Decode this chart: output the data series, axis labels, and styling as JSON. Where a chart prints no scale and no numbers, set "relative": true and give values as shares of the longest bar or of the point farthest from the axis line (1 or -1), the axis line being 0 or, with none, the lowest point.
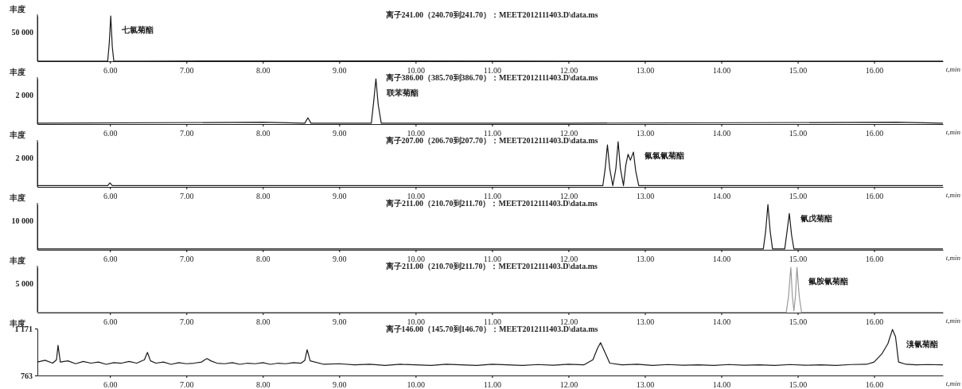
{
  "chart_data": [
    {
      "type": "line",
      "title": "离子241.00（240.70到241.70）：MEET2012111403.D\\data.ms",
      "xlabel": "t,min",
      "ylabel": "丰度",
      "color": "#1a1a1a",
      "relative": true,
      "xlim": [
        5.05,
        16.9
      ],
      "xticks": [
        {
          "value": 6,
          "label": "6.00"
        },
        {
          "value": 7,
          "label": "7.00"
        },
        {
          "value": 8,
          "label": "8.00"
        },
        {
          "value": 9,
          "label": "9.00"
        },
        {
          "value": 10,
          "label": "10.00"
        },
        {
          "value": 11,
          "label": "11.00"
        },
        {
          "value": 12,
          "label": "12.00"
        },
        {
          "value": 13,
          "label": "13.00"
        },
        {
          "value": 14,
          "label": "14.00"
        },
        {
          "value": 15,
          "label": "15.00"
        },
        {
          "value": 16,
          "label": "16.00"
        }
      ],
      "x": [
        5.05,
        5.5,
        5.97,
        5.99,
        6.01,
        6.03,
        6.05,
        6.5,
        9.48,
        12,
        16.9
      ],
      "values": [
        0.004,
        0.004,
        0.004,
        0.39,
        1,
        0.32,
        0.004,
        0.004,
        0.008,
        0.004,
        0.004
      ],
      "annotations": [
        "50 000",
        "七氯菊酯"
      ]
    },
    {
      "type": "line",
      "title": "离子386.00（385.70到386.70）：MEET2012111403.D\\data.ms",
      "xlabel": "t,min",
      "ylabel": "丰度",
      "color": "#1a1a1a",
      "relative": true,
      "xlim": [
        5.05,
        16.9
      ],
      "xticks": [
        {
          "value": 6,
          "label": "6.00"
        },
        {
          "value": 7,
          "label": "7.00"
        },
        {
          "value": 8,
          "label": "8.00"
        },
        {
          "value": 9,
          "label": "9.00"
        },
        {
          "value": 10,
          "label": "10.00"
        },
        {
          "value": 11,
          "label": "11.00"
        },
        {
          "value": 12,
          "label": "12.00"
        },
        {
          "value": 13,
          "label": "13.00"
        },
        {
          "value": 14,
          "label": "14.00"
        },
        {
          "value": 15,
          "label": "15.00"
        },
        {
          "value": 16,
          "label": "16.00"
        }
      ],
      "x": [
        5.05,
        8.0,
        8.55,
        8.59,
        8.63,
        9.42,
        9.45,
        9.48,
        9.51,
        9.55,
        12,
        16.3,
        16.9
      ],
      "values": [
        0.02,
        0.04,
        0.02,
        0.14,
        0.02,
        0.02,
        0.48,
        1,
        0.43,
        0.02,
        0.02,
        0.04,
        0.02
      ],
      "annotations": [
        "2 000",
        "联苯菊酯"
      ]
    },
    {
      "type": "line",
      "title": "离子207.00（206.70到207.70）：MEET2012111403.D\\data.ms",
      "xlabel": "t,min",
      "ylabel": "丰度",
      "color": "#1a1a1a",
      "relative": true,
      "xlim": [
        5.05,
        16.9
      ],
      "xticks": [
        {
          "value": 6,
          "label": "6.00"
        },
        {
          "value": 7,
          "label": "7.00"
        },
        {
          "value": 8,
          "label": "8.00"
        },
        {
          "value": 9,
          "label": "9.00"
        },
        {
          "value": 10,
          "label": "10.00"
        },
        {
          "value": 11,
          "label": "11.00"
        },
        {
          "value": 12,
          "label": "12.00"
        },
        {
          "value": 13,
          "label": "13.00"
        },
        {
          "value": 14,
          "label": "14.00"
        },
        {
          "value": 15,
          "label": "15.00"
        },
        {
          "value": 16,
          "label": "16.00"
        }
      ],
      "x": [
        5.05,
        5.97,
        6.0,
        6.03,
        12.45,
        12.48,
        12.51,
        12.54,
        12.58,
        12.62,
        12.65,
        12.68,
        12.72,
        12.75,
        12.78,
        12.81,
        12.85,
        12.88,
        12.92,
        16.9
      ],
      "values": [
        0.03,
        0.03,
        0.09,
        0.03,
        0.03,
        0.4,
        0.93,
        0.4,
        0.03,
        0.4,
        1,
        0.4,
        0.03,
        0.48,
        0.72,
        0.59,
        0.77,
        0.35,
        0.03,
        0.03
      ],
      "annotations": [
        "2 000",
        "氟氯氰菊酯"
      ]
    },
    {
      "type": "line",
      "title": "离子211.00（210.70到211.70）：MEET2012111403.D\\data.ms",
      "xlabel": "t,min",
      "ylabel": "丰度",
      "color": "#1a1a1a",
      "relative": true,
      "xlim": [
        5.05,
        16.9
      ],
      "xticks": [
        {
          "value": 6,
          "label": "6.00"
        },
        {
          "value": 7,
          "label": "7.00"
        },
        {
          "value": 8,
          "label": "8.00"
        },
        {
          "value": 9,
          "label": "9.00"
        },
        {
          "value": 10,
          "label": "10.00"
        },
        {
          "value": 11,
          "label": "11.00"
        },
        {
          "value": 12,
          "label": "12.00"
        },
        {
          "value": 13,
          "label": "13.00"
        },
        {
          "value": 14,
          "label": "14.00"
        },
        {
          "value": 15,
          "label": "15.00"
        },
        {
          "value": 16,
          "label": "16.00"
        }
      ],
      "x": [
        5.05,
        14.55,
        14.58,
        14.61,
        14.64,
        14.67,
        14.83,
        14.86,
        14.89,
        14.92,
        14.95,
        16.9
      ],
      "values": [
        0.02,
        0.02,
        0.4,
        1,
        0.4,
        0.02,
        0.02,
        0.4,
        0.8,
        0.32,
        0.02,
        0.02
      ],
      "annotations": [
        "10 000",
        "氰戊菊酯"
      ]
    },
    {
      "type": "line",
      "title": "离子211.00（210.70到211.70）：MEET2012111403.D\\data.ms",
      "xlabel": "t,min",
      "ylabel": "丰度",
      "color": "#9a9a9a",
      "relative": true,
      "xlim": [
        5.05,
        16.9
      ],
      "xticks": [
        {
          "value": 6,
          "label": "6.00"
        },
        {
          "value": 7,
          "label": "7.00"
        },
        {
          "value": 8,
          "label": "8.00"
        },
        {
          "value": 9,
          "label": "9.00"
        },
        {
          "value": 10,
          "label": "10.00"
        },
        {
          "value": 11,
          "label": "11.00"
        },
        {
          "value": 12,
          "label": "12.00"
        },
        {
          "value": 13,
          "label": "13.00"
        },
        {
          "value": 14,
          "label": "14.00"
        },
        {
          "value": 15,
          "label": "15.00"
        },
        {
          "value": 16,
          "label": "16.00"
        }
      ],
      "x": [
        5.05,
        14.85,
        14.88,
        14.91,
        14.93,
        14.95,
        14.97,
        14.99,
        15.02,
        15.05,
        16.9
      ],
      "values": [
        0.006,
        0.006,
        0.36,
        1,
        0.36,
        0.04,
        0.36,
        1,
        0.36,
        0.006,
        0.006
      ],
      "annotations": [
        "5 000",
        "氟胺氰菊酯"
      ]
    },
    {
      "type": "line",
      "title": "离子146.00（145.70到146.70）：MEET2012111403.D\\data.ms",
      "xlabel": "t,min",
      "ylabel": "丰度",
      "color": "#1a1a1a",
      "xlim": [
        5.05,
        16.9
      ],
      "xticks": [
        {
          "value": 6,
          "label": "6.00"
        },
        {
          "value": 7,
          "label": "7.00"
        },
        {
          "value": 8,
          "label": "8.00"
        },
        {
          "value": 9,
          "label": "9.00"
        },
        {
          "value": 10,
          "label": "10.00"
        },
        {
          "value": 11,
          "label": "11.00"
        },
        {
          "value": 12,
          "label": "12.00"
        },
        {
          "value": 13,
          "label": "13.00"
        },
        {
          "value": 14,
          "label": "14.00"
        },
        {
          "value": 15,
          "label": "15.00"
        },
        {
          "value": 16,
          "label": "16.00"
        }
      ],
      "ylim": [
        763,
        1171
      ],
      "yticks": [
        763,
        {
          "value": 1171,
          "label": "1 171"
        }
      ],
      "x": [
        5.05,
        5.15,
        5.25,
        5.3,
        5.32,
        5.35,
        5.45,
        5.55,
        5.65,
        5.75,
        5.85,
        5.95,
        6.05,
        6.15,
        6.25,
        6.35,
        6.45,
        6.49,
        6.53,
        6.6,
        6.7,
        6.8,
        6.9,
        7.0,
        7.1,
        7.2,
        7.24,
        7.27,
        7.32,
        7.4,
        7.5,
        7.6,
        7.7,
        7.8,
        7.9,
        8.0,
        8.1,
        8.2,
        8.3,
        8.4,
        8.5,
        8.55,
        8.58,
        8.62,
        8.8,
        9.0,
        9.2,
        9.4,
        9.6,
        9.8,
        10.0,
        10.2,
        10.4,
        10.6,
        10.8,
        11.0,
        11.2,
        11.4,
        11.6,
        11.8,
        12.0,
        12.2,
        12.32,
        12.38,
        12.42,
        12.46,
        12.54,
        12.7,
        12.9,
        13.1,
        13.3,
        13.5,
        13.7,
        13.9,
        14.1,
        14.3,
        14.5,
        14.7,
        14.9,
        15.1,
        15.3,
        15.5,
        15.7,
        15.9,
        16.0,
        16.1,
        16.18,
        16.24,
        16.28,
        16.32,
        16.42,
        16.55,
        16.7,
        16.9
      ],
      "values": [
        880,
        895,
        870,
        900,
        1025,
        880,
        890,
        865,
        885,
        870,
        880,
        860,
        875,
        870,
        885,
        870,
        900,
        963,
        890,
        870,
        880,
        860,
        875,
        865,
        870,
        880,
        900,
        910,
        890,
        870,
        865,
        875,
        860,
        870,
        865,
        875,
        860,
        870,
        865,
        875,
        870,
        895,
        987,
        890,
        860,
        865,
        855,
        860,
        850,
        860,
        855,
        850,
        860,
        855,
        850,
        860,
        855,
        850,
        858,
        852,
        860,
        855,
        900,
        1000,
        1048,
        990,
        870,
        855,
        860,
        850,
        858,
        852,
        855,
        850,
        858,
        852,
        855,
        850,
        858,
        852,
        855,
        850,
        858,
        860,
        880,
        950,
        1040,
        1163,
        1100,
        880,
        860,
        855,
        858,
        856
      ],
      "annotations": [
        "溴氰菊酯"
      ]
    }
  ]
}
